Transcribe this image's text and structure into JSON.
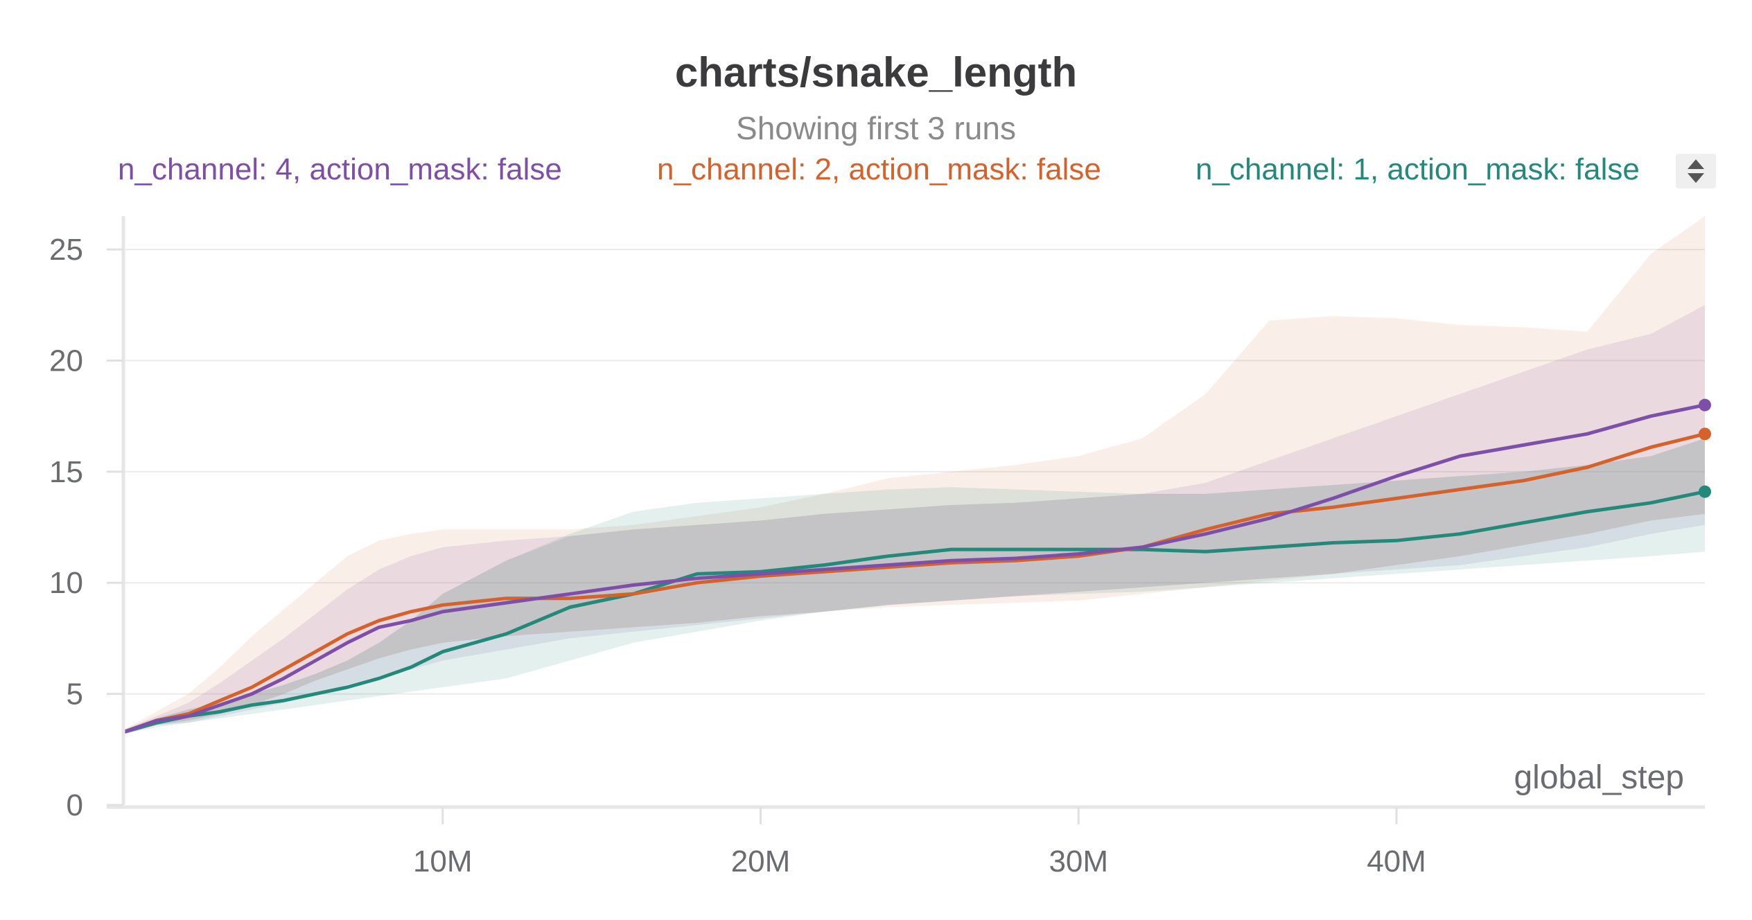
{
  "chart_data": {
    "type": "line",
    "title": "charts/snake_length",
    "subtitle": "Showing first 3 runs",
    "xlabel": "global_step",
    "ylabel": "",
    "xlim": [
      0,
      49700000
    ],
    "ylim": [
      0,
      26.5
    ],
    "grid": true,
    "legend_position": "top",
    "x_ticks": [
      10000000,
      20000000,
      30000000,
      40000000
    ],
    "x_tick_labels": [
      "10M",
      "20M",
      "30M",
      "40M"
    ],
    "y_ticks": [
      0,
      5,
      10,
      15,
      20,
      25
    ],
    "y_tick_labels": [
      "0",
      "5",
      "10",
      "15",
      "20",
      "25"
    ],
    "x": [
      0,
      1000000,
      2000000,
      3000000,
      4000000,
      5000000,
      6000000,
      7000000,
      8000000,
      9000000,
      10000000,
      12000000,
      14000000,
      16000000,
      18000000,
      20000000,
      22000000,
      24000000,
      26000000,
      28000000,
      30000000,
      32000000,
      34000000,
      36000000,
      38000000,
      40000000,
      42000000,
      44000000,
      46000000,
      48000000,
      49700000
    ],
    "series": [
      {
        "name": "n_channel: 4, action_mask: false",
        "color": "#7e4fa9",
        "values": [
          3.3,
          3.8,
          4.0,
          4.5,
          5.0,
          5.7,
          6.5,
          7.3,
          8.0,
          8.3,
          8.7,
          9.1,
          9.5,
          9.9,
          10.2,
          10.4,
          10.6,
          10.8,
          11.0,
          11.1,
          11.3,
          11.6,
          12.2,
          12.9,
          13.8,
          14.8,
          15.7,
          16.2,
          16.7,
          17.5,
          18.0
        ],
        "band_upper": [
          3.4,
          4.0,
          4.6,
          5.5,
          6.5,
          7.5,
          8.6,
          9.7,
          10.6,
          11.2,
          11.6,
          11.9,
          12.1,
          12.4,
          12.6,
          12.8,
          13.1,
          13.3,
          13.5,
          13.6,
          13.8,
          14.0,
          14.5,
          15.5,
          16.5,
          17.5,
          18.5,
          19.5,
          20.5,
          21.2,
          22.5
        ],
        "band_lower": [
          3.2,
          3.6,
          3.7,
          4.0,
          4.3,
          4.6,
          5.0,
          5.4,
          5.8,
          6.1,
          6.5,
          7.0,
          7.5,
          7.8,
          8.1,
          8.4,
          8.7,
          9.0,
          9.2,
          9.4,
          9.6,
          9.8,
          10.0,
          10.2,
          10.4,
          10.6,
          10.8,
          11.2,
          11.6,
          12.2,
          12.6
        ]
      },
      {
        "name": "n_channel: 2, action_mask: false",
        "color": "#d4622a",
        "values": [
          3.3,
          3.8,
          4.1,
          4.7,
          5.3,
          6.1,
          6.9,
          7.7,
          8.3,
          8.7,
          9.0,
          9.3,
          9.3,
          9.5,
          10.0,
          10.3,
          10.5,
          10.7,
          10.9,
          11.0,
          11.2,
          11.6,
          12.4,
          13.1,
          13.4,
          13.8,
          14.2,
          14.6,
          15.2,
          16.1,
          16.7
        ],
        "band_upper": [
          3.4,
          4.2,
          5.0,
          6.2,
          7.6,
          8.8,
          10.0,
          11.2,
          11.9,
          12.2,
          12.4,
          12.4,
          12.4,
          12.6,
          13.0,
          13.4,
          14.0,
          14.7,
          15.0,
          15.3,
          15.7,
          16.5,
          18.5,
          21.8,
          22.0,
          21.9,
          21.6,
          21.5,
          21.3,
          24.8,
          26.5
        ],
        "band_lower": [
          3.2,
          3.6,
          3.8,
          4.1,
          4.5,
          5.0,
          5.6,
          6.1,
          6.6,
          7.0,
          7.3,
          7.6,
          7.8,
          8.0,
          8.2,
          8.5,
          8.7,
          8.9,
          9.0,
          9.1,
          9.2,
          9.5,
          9.8,
          10.1,
          10.4,
          10.8,
          11.2,
          11.7,
          12.2,
          12.8,
          13.1
        ]
      },
      {
        "name": "n_channel: 1, action_mask: false",
        "color": "#23897b",
        "values": [
          3.3,
          3.7,
          4.0,
          4.2,
          4.5,
          4.7,
          5.0,
          5.3,
          5.7,
          6.2,
          6.9,
          7.7,
          8.9,
          9.5,
          10.4,
          10.5,
          10.8,
          11.2,
          11.5,
          11.5,
          11.5,
          11.5,
          11.4,
          11.6,
          11.8,
          11.9,
          12.2,
          12.7,
          13.2,
          13.6,
          14.1
        ],
        "band_upper": [
          3.4,
          3.9,
          4.3,
          4.6,
          5.0,
          5.4,
          5.9,
          6.5,
          7.3,
          8.3,
          9.5,
          11.0,
          12.2,
          13.2,
          13.6,
          13.8,
          14.0,
          14.2,
          14.3,
          14.2,
          14.1,
          14.0,
          14.0,
          14.2,
          14.4,
          14.6,
          14.8,
          15.0,
          15.3,
          15.7,
          16.5
        ],
        "band_lower": [
          3.2,
          3.5,
          3.7,
          3.9,
          4.1,
          4.3,
          4.5,
          4.7,
          4.9,
          5.1,
          5.3,
          5.7,
          6.5,
          7.3,
          7.8,
          8.3,
          8.7,
          9.0,
          9.2,
          9.4,
          9.5,
          9.6,
          9.8,
          10.0,
          10.2,
          10.4,
          10.6,
          10.8,
          11.0,
          11.2,
          11.4
        ]
      }
    ]
  }
}
